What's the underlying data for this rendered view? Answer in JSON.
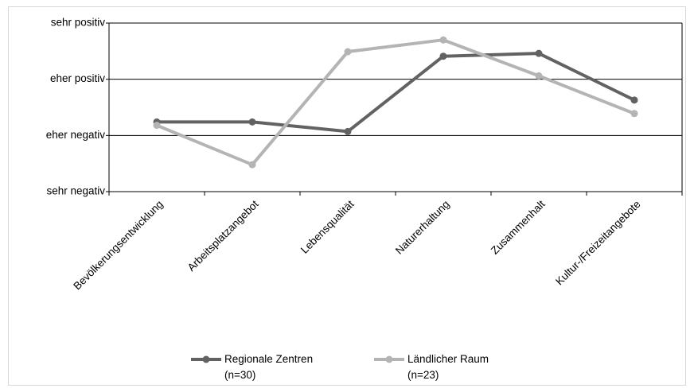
{
  "chart_data": {
    "type": "line",
    "categories": [
      "Bevölkerungsentwicklung",
      "Arbeitsplatzangebot",
      "Lebensqualität",
      "Naturerhaltung",
      "Zusammenhalt",
      "Kultur-/Freizeitangebote"
    ],
    "series": [
      {
        "name": "Regionale Zentren\n(n=30)",
        "color": "#626262",
        "values": [
          2.24,
          2.24,
          2.07,
          3.41,
          3.46,
          2.63
        ]
      },
      {
        "name": "Ländlicher Raum\n(n=23)",
        "color": "#b4b4b4",
        "values": [
          2.18,
          1.48,
          3.49,
          3.7,
          3.06,
          2.39
        ]
      }
    ],
    "ylim": [
      1,
      4
    ],
    "yticks": [
      {
        "value": 1,
        "label": "sehr negativ"
      },
      {
        "value": 2,
        "label": "eher negativ"
      },
      {
        "value": 3,
        "label": "eher positiv"
      },
      {
        "value": 4,
        "label": "sehr positiv"
      }
    ],
    "grid": true,
    "legend": "bottom"
  }
}
